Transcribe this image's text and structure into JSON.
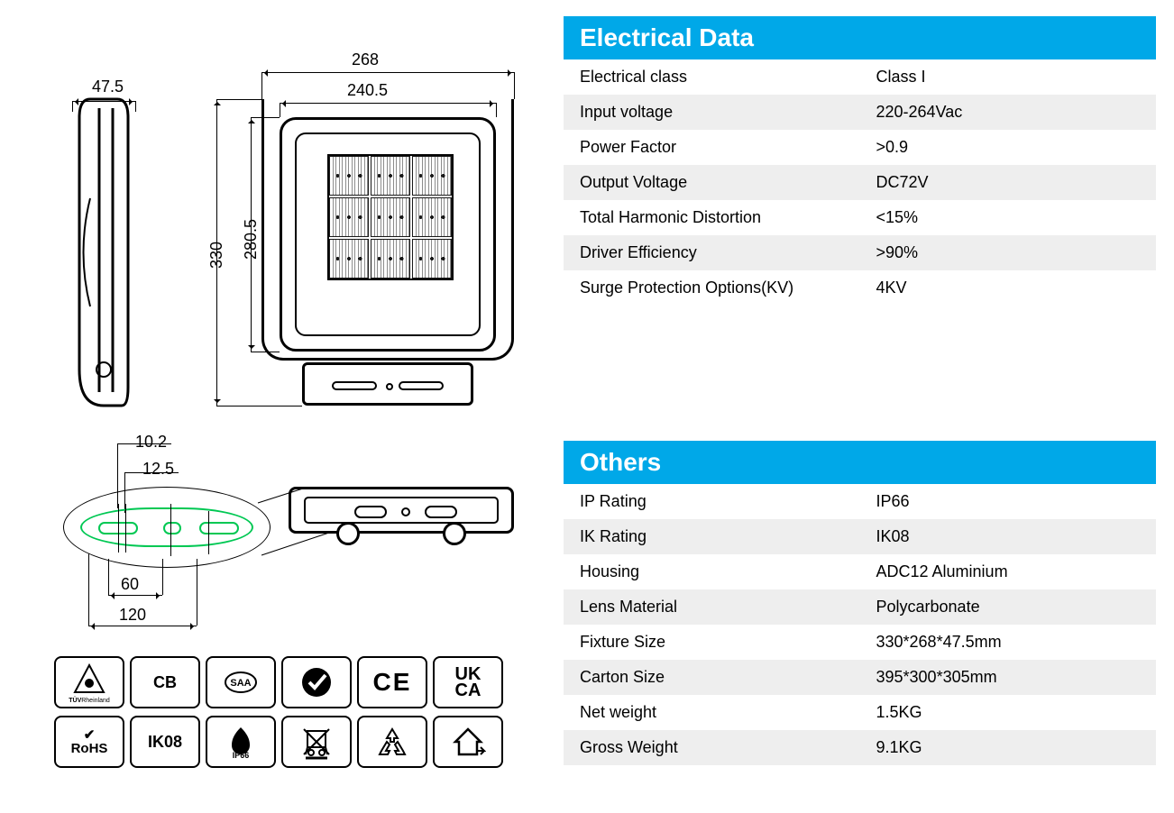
{
  "colors": {
    "header_bg": "#00a8e8",
    "header_text": "#ffffff",
    "row_alt_bg": "#eeeeee",
    "stroke": "#000000",
    "accent_green": "#00c853"
  },
  "electrical": {
    "title": "Electrical Data",
    "rows": [
      {
        "label": "Electrical class",
        "value": "Class I"
      },
      {
        "label": "Input voltage",
        "value": "220-264Vac"
      },
      {
        "label": "Power Factor",
        "value": ">0.9"
      },
      {
        "label": "Output Voltage",
        "value": "DC72V"
      },
      {
        "label": "Total Harmonic Distortion",
        "value": "<15%"
      },
      {
        "label": "Driver Efficiency",
        "value": ">90%"
      },
      {
        "label": "Surge Protection Options(KV)",
        "value": "4KV"
      }
    ]
  },
  "others": {
    "title": "Others",
    "rows": [
      {
        "label": "IP Rating",
        "value": "IP66"
      },
      {
        "label": "IK Rating",
        "value": "IK08"
      },
      {
        "label": "Housing",
        "value": "ADC12 Aluminium"
      },
      {
        "label": "Lens Material",
        "value": "Polycarbonate"
      },
      {
        "label": "Fixture Size",
        "value": "330*268*47.5mm"
      },
      {
        "label": "Carton Size",
        "value": "395*300*305mm"
      },
      {
        "label": "Net weight",
        "value": "1.5KG"
      },
      {
        "label": "Gross Weight",
        "value": "9.1KG"
      }
    ]
  },
  "dimensions": {
    "depth": "47.5",
    "width_outer": "268",
    "width_inner": "240.5",
    "height_outer": "330",
    "height_inner": "280.5",
    "hole_dia": "10.2",
    "hole_width": "12.5",
    "hole_pitch": "60",
    "base_width": "120"
  },
  "certs_row1": [
    {
      "name": "tuv",
      "text": "TÜV",
      "sub": "Rheinland"
    },
    {
      "name": "cb",
      "text": "CB"
    },
    {
      "name": "saa",
      "text": "SAA"
    },
    {
      "name": "rcm",
      "text": "✔"
    },
    {
      "name": "ce",
      "text": "CE"
    },
    {
      "name": "ukca",
      "text": "UK\nCA"
    }
  ],
  "certs_row2": [
    {
      "name": "rohs",
      "text": "RoHS"
    },
    {
      "name": "ik08",
      "text": "IK08"
    },
    {
      "name": "ip66",
      "text": "IP66"
    },
    {
      "name": "weee",
      "text": ""
    },
    {
      "name": "recycle",
      "text": ""
    },
    {
      "name": "indoor",
      "text": ""
    }
  ]
}
